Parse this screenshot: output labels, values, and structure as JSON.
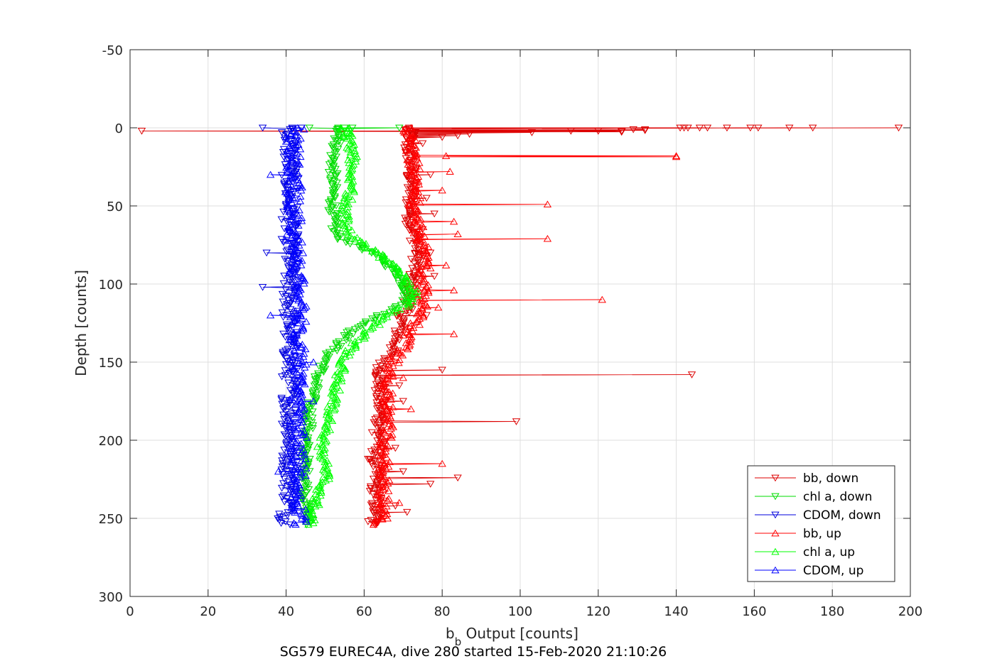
{
  "chart_data": {
    "type": "line",
    "title": "",
    "footer": "SG579 EUREC4A, dive 280 started 15-Feb-2020 21:10:26",
    "xlabel_main": "b",
    "xlabel_sub": "b",
    "xlabel_rest": " Output [counts]",
    "ylabel": "Depth [counts]",
    "xlim": [
      0,
      200
    ],
    "ylim": [
      -50,
      300
    ],
    "y_reversed": true,
    "grid": true,
    "legend_position": "bottom-right",
    "x_ticks": [
      "0",
      "20",
      "40",
      "60",
      "80",
      "100",
      "120",
      "140",
      "160",
      "180",
      "200"
    ],
    "y_ticks": [
      "-50",
      "0",
      "50",
      "100",
      "150",
      "200",
      "250",
      "300"
    ],
    "x_tick_values": [
      0,
      20,
      40,
      60,
      80,
      100,
      120,
      140,
      160,
      180,
      200
    ],
    "y_tick_values": [
      -50,
      0,
      50,
      100,
      150,
      200,
      250,
      300
    ],
    "series": [
      {
        "name": "bb, down",
        "color": "#dd0000",
        "marker": "triangle-down",
        "profile": [
          [
            0,
            71
          ],
          [
            5,
            72
          ],
          [
            10,
            71
          ],
          [
            20,
            72
          ],
          [
            30,
            72
          ],
          [
            40,
            72
          ],
          [
            50,
            72
          ],
          [
            60,
            72
          ],
          [
            70,
            73
          ],
          [
            80,
            74
          ],
          [
            90,
            73
          ],
          [
            100,
            72
          ],
          [
            110,
            72
          ],
          [
            120,
            70
          ],
          [
            130,
            69
          ],
          [
            140,
            68
          ],
          [
            150,
            65
          ],
          [
            160,
            64
          ],
          [
            170,
            64
          ],
          [
            180,
            64
          ],
          [
            190,
            64
          ],
          [
            200,
            64
          ],
          [
            210,
            63
          ],
          [
            220,
            63
          ],
          [
            230,
            63
          ],
          [
            240,
            63
          ],
          [
            250,
            63
          ],
          [
            254,
            62
          ]
        ],
        "spikes": [
          [
            0,
            197
          ],
          [
            0,
            175
          ],
          [
            0,
            169
          ],
          [
            0,
            161
          ],
          [
            0,
            159
          ],
          [
            0,
            153
          ],
          [
            0,
            148
          ],
          [
            0,
            146
          ],
          [
            0,
            143
          ],
          [
            0,
            142
          ],
          [
            0,
            141
          ],
          [
            1,
            132
          ],
          [
            1,
            129
          ],
          [
            2,
            126
          ],
          [
            2,
            120
          ],
          [
            2,
            113
          ],
          [
            3,
            103
          ],
          [
            4,
            87
          ],
          [
            5,
            84
          ],
          [
            6,
            80
          ],
          [
            158,
            144
          ],
          [
            188,
            99
          ],
          [
            224,
            84
          ],
          [
            228,
            77
          ],
          [
            2,
            3
          ],
          [
            10,
            75
          ],
          [
            15,
            73
          ],
          [
            30,
            77
          ],
          [
            45,
            76
          ],
          [
            55,
            78
          ],
          [
            65,
            75
          ],
          [
            80,
            77
          ],
          [
            95,
            78
          ],
          [
            120,
            76
          ],
          [
            155,
            80
          ],
          [
            165,
            69
          ],
          [
            175,
            70
          ],
          [
            185,
            66
          ],
          [
            195,
            62
          ],
          [
            205,
            68
          ],
          [
            212,
            61
          ],
          [
            220,
            70
          ],
          [
            230,
            65
          ],
          [
            242,
            68
          ],
          [
            246,
            71
          ],
          [
            252,
            61
          ]
        ]
      },
      {
        "name": "chl a, down",
        "color": "#00dd00",
        "marker": "triangle-down",
        "profile": [
          [
            0,
            54
          ],
          [
            10,
            53
          ],
          [
            20,
            52
          ],
          [
            30,
            52
          ],
          [
            40,
            52
          ],
          [
            50,
            52
          ],
          [
            60,
            52
          ],
          [
            70,
            53
          ],
          [
            75,
            58
          ],
          [
            80,
            62
          ],
          [
            85,
            65
          ],
          [
            90,
            67
          ],
          [
            95,
            69
          ],
          [
            100,
            70
          ],
          [
            105,
            71
          ],
          [
            110,
            71
          ],
          [
            115,
            69
          ],
          [
            120,
            64
          ],
          [
            125,
            61
          ],
          [
            130,
            57
          ],
          [
            135,
            55
          ],
          [
            140,
            53
          ],
          [
            145,
            51
          ],
          [
            150,
            50
          ],
          [
            160,
            48
          ],
          [
            170,
            47
          ],
          [
            180,
            46
          ],
          [
            190,
            46
          ],
          [
            200,
            45
          ],
          [
            210,
            45
          ],
          [
            220,
            45
          ],
          [
            230,
            45
          ],
          [
            240,
            45
          ],
          [
            250,
            46
          ],
          [
            254,
            46
          ]
        ],
        "spikes": [
          [
            0,
            46
          ],
          [
            0,
            55
          ],
          [
            0,
            57
          ],
          [
            0,
            69
          ]
        ]
      },
      {
        "name": "CDOM, down",
        "color": "#0000dd",
        "marker": "triangle-down",
        "profile": [
          [
            0,
            41
          ],
          [
            10,
            41
          ],
          [
            20,
            41
          ],
          [
            30,
            41
          ],
          [
            40,
            41
          ],
          [
            50,
            41
          ],
          [
            60,
            41
          ],
          [
            70,
            41
          ],
          [
            80,
            41
          ],
          [
            90,
            41
          ],
          [
            100,
            41
          ],
          [
            110,
            41
          ],
          [
            120,
            41
          ],
          [
            130,
            41
          ],
          [
            140,
            41
          ],
          [
            150,
            41
          ],
          [
            160,
            41
          ],
          [
            170,
            41
          ],
          [
            180,
            41
          ],
          [
            190,
            41
          ],
          [
            200,
            41
          ],
          [
            210,
            41
          ],
          [
            220,
            41
          ],
          [
            230,
            41
          ],
          [
            240,
            41
          ],
          [
            250,
            40
          ],
          [
            254,
            40
          ]
        ],
        "spikes": [
          [
            0,
            34
          ],
          [
            0,
            44
          ],
          [
            80,
            35
          ],
          [
            102,
            34
          ],
          [
            210,
            39
          ]
        ]
      },
      {
        "name": "bb, up",
        "color": "#ff0000",
        "marker": "triangle-up",
        "profile": [
          [
            254,
            64
          ],
          [
            245,
            65
          ],
          [
            235,
            65
          ],
          [
            225,
            65
          ],
          [
            215,
            65
          ],
          [
            205,
            65
          ],
          [
            195,
            66
          ],
          [
            185,
            66
          ],
          [
            175,
            66
          ],
          [
            165,
            66
          ],
          [
            155,
            67
          ],
          [
            148,
            68
          ],
          [
            140,
            70
          ],
          [
            130,
            72
          ],
          [
            120,
            74
          ],
          [
            112,
            75
          ],
          [
            105,
            75
          ],
          [
            95,
            75
          ],
          [
            85,
            76
          ],
          [
            75,
            75
          ],
          [
            65,
            74
          ],
          [
            55,
            73
          ],
          [
            45,
            73
          ],
          [
            35,
            73
          ],
          [
            25,
            73
          ],
          [
            15,
            72
          ],
          [
            5,
            72
          ],
          [
            0,
            71
          ]
        ],
        "spikes": [
          [
            18,
            140
          ],
          [
            49,
            107
          ],
          [
            71,
            107
          ],
          [
            110,
            121
          ],
          [
            60,
            83
          ],
          [
            68,
            84
          ],
          [
            104,
            83
          ],
          [
            132,
            83
          ],
          [
            18,
            81
          ],
          [
            28,
            82
          ],
          [
            40,
            80
          ],
          [
            88,
            81
          ],
          [
            115,
            79
          ],
          [
            160,
            70
          ],
          [
            180,
            72
          ],
          [
            215,
            80
          ],
          [
            240,
            69
          ],
          [
            250,
            66
          ]
        ]
      },
      {
        "name": "chl a, up",
        "color": "#00ff00",
        "marker": "triangle-up",
        "profile": [
          [
            254,
            46
          ],
          [
            245,
            47
          ],
          [
            235,
            48
          ],
          [
            225,
            50
          ],
          [
            215,
            50
          ],
          [
            205,
            49
          ],
          [
            195,
            50
          ],
          [
            185,
            51
          ],
          [
            175,
            52
          ],
          [
            165,
            53
          ],
          [
            155,
            54
          ],
          [
            148,
            55
          ],
          [
            140,
            57
          ],
          [
            130,
            61
          ],
          [
            120,
            66
          ],
          [
            112,
            72
          ],
          [
            106,
            73
          ],
          [
            100,
            71
          ],
          [
            92,
            69
          ],
          [
            85,
            66
          ],
          [
            78,
            62
          ],
          [
            72,
            58
          ],
          [
            65,
            56
          ],
          [
            55,
            55
          ],
          [
            45,
            56
          ],
          [
            35,
            57
          ],
          [
            25,
            57
          ],
          [
            15,
            57
          ],
          [
            8,
            56
          ],
          [
            0,
            55
          ]
        ],
        "spikes": [
          [
            5,
            57
          ],
          [
            0,
            54
          ]
        ]
      },
      {
        "name": "CDOM, up",
        "color": "#0000ff",
        "marker": "triangle-up",
        "profile": [
          [
            254,
            43
          ],
          [
            245,
            43
          ],
          [
            235,
            43
          ],
          [
            225,
            43
          ],
          [
            215,
            43
          ],
          [
            205,
            43
          ],
          [
            195,
            43
          ],
          [
            185,
            43
          ],
          [
            175,
            43
          ],
          [
            165,
            43
          ],
          [
            155,
            43
          ],
          [
            145,
            43
          ],
          [
            135,
            43
          ],
          [
            125,
            43
          ],
          [
            115,
            43
          ],
          [
            105,
            43
          ],
          [
            95,
            43
          ],
          [
            85,
            43
          ],
          [
            75,
            42
          ],
          [
            65,
            42
          ],
          [
            55,
            42
          ],
          [
            45,
            42
          ],
          [
            35,
            42
          ],
          [
            25,
            42
          ],
          [
            15,
            42
          ],
          [
            5,
            42
          ],
          [
            0,
            43
          ]
        ],
        "spikes": [
          [
            30,
            36
          ],
          [
            120,
            36
          ],
          [
            150,
            47
          ],
          [
            175,
            47
          ],
          [
            220,
            38
          ]
        ]
      }
    ]
  }
}
